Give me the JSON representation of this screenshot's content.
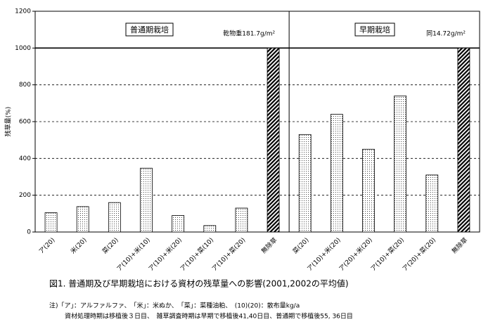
{
  "chart_data": {
    "type": "bar",
    "y_label": "残草量(%)",
    "ylim": [
      0,
      1200
    ],
    "yticks": [
      0,
      200,
      400,
      600,
      800,
      1000,
      1200
    ],
    "grid": true,
    "reference_line": 1000,
    "groups": [
      {
        "name": "普通期栽培",
        "note": "乾物重181.7g/m²",
        "categories": [
          "ア(20)",
          "米(20)",
          "菜(20)",
          "ア(10)+米(10)",
          "ア(10)+米(20)",
          "ア(10)+菜(10)",
          "ア(10)+菜(20)",
          "無除草"
        ],
        "values": [
          105,
          138,
          160,
          347,
          90,
          35,
          130,
          1000
        ],
        "patterns": [
          "dots",
          "dots",
          "dots",
          "dots",
          "dots",
          "dots",
          "dots",
          "hatch"
        ]
      },
      {
        "name": "早期栽培",
        "note": "同14.72g/m²",
        "categories": [
          "菜(20)",
          "ア(10)+米(20)",
          "ア(20)+米(20)",
          "ア(10)+菜(20)",
          "ア(20)+菜(20)",
          "無除草"
        ],
        "values": [
          530,
          640,
          450,
          740,
          310,
          1000
        ],
        "patterns": [
          "dots",
          "dots",
          "dots",
          "dots",
          "dots",
          "hatch"
        ]
      }
    ],
    "caption": "図1. 普通期及び早期栽培における資材の残草量への影響(2001,2002の平均値)",
    "notes": [
      "注)「ア」：アルファルファ、　「米」：米ぬか、　「菜」：菜種油粕、　(10)(20)：散布量kg/a",
      "資材処理時期は移植後３日目、　雑草調査時期は早期で移植後41,40日目、普通期で移植後55, 36日目"
    ]
  }
}
